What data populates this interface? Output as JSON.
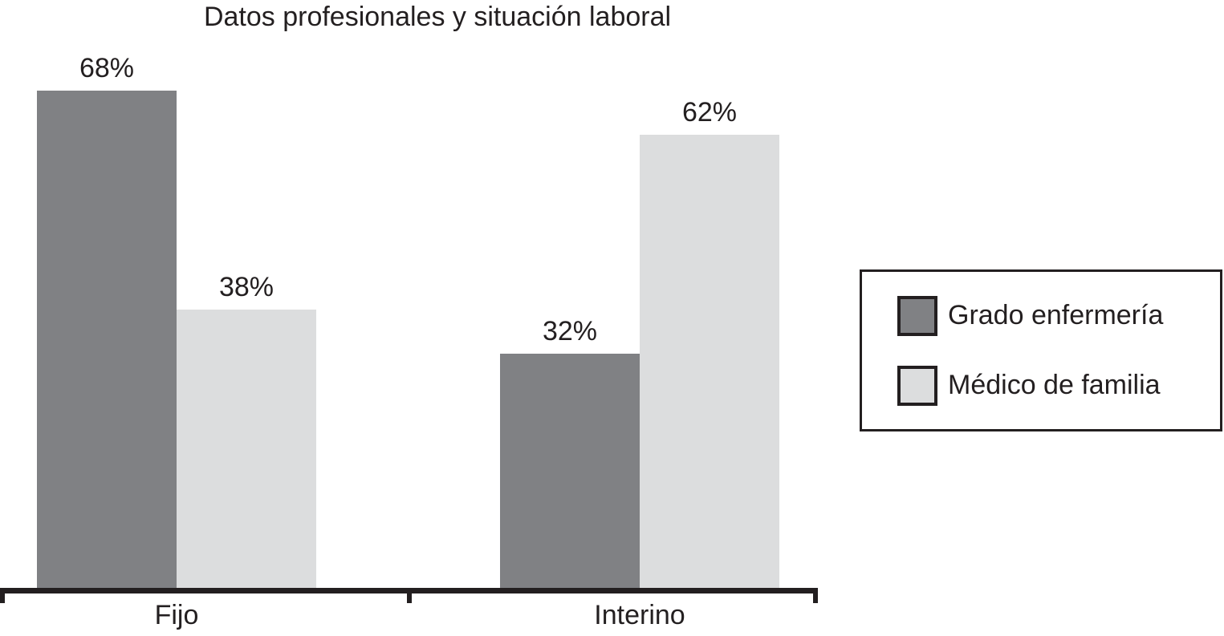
{
  "chart_data": {
    "type": "bar",
    "title": "Datos profesionales y situación laboral",
    "categories": [
      "Fijo",
      "Interino"
    ],
    "series": [
      {
        "name": "Grado enfermería",
        "color": "#808184",
        "values": [
          68,
          32
        ],
        "labels": [
          "68%",
          "32%"
        ]
      },
      {
        "name": "Médico de familia",
        "color": "#dcddde",
        "values": [
          38,
          62
        ],
        "labels": [
          "38%",
          "62%"
        ]
      }
    ],
    "unit": "%",
    "ylim": [
      0,
      100
    ],
    "grid": false,
    "y_axis_shown": false,
    "legend_position": "right",
    "colors": {
      "text": "#231f20",
      "axis": "#231f20",
      "background": "#ffffff"
    }
  }
}
